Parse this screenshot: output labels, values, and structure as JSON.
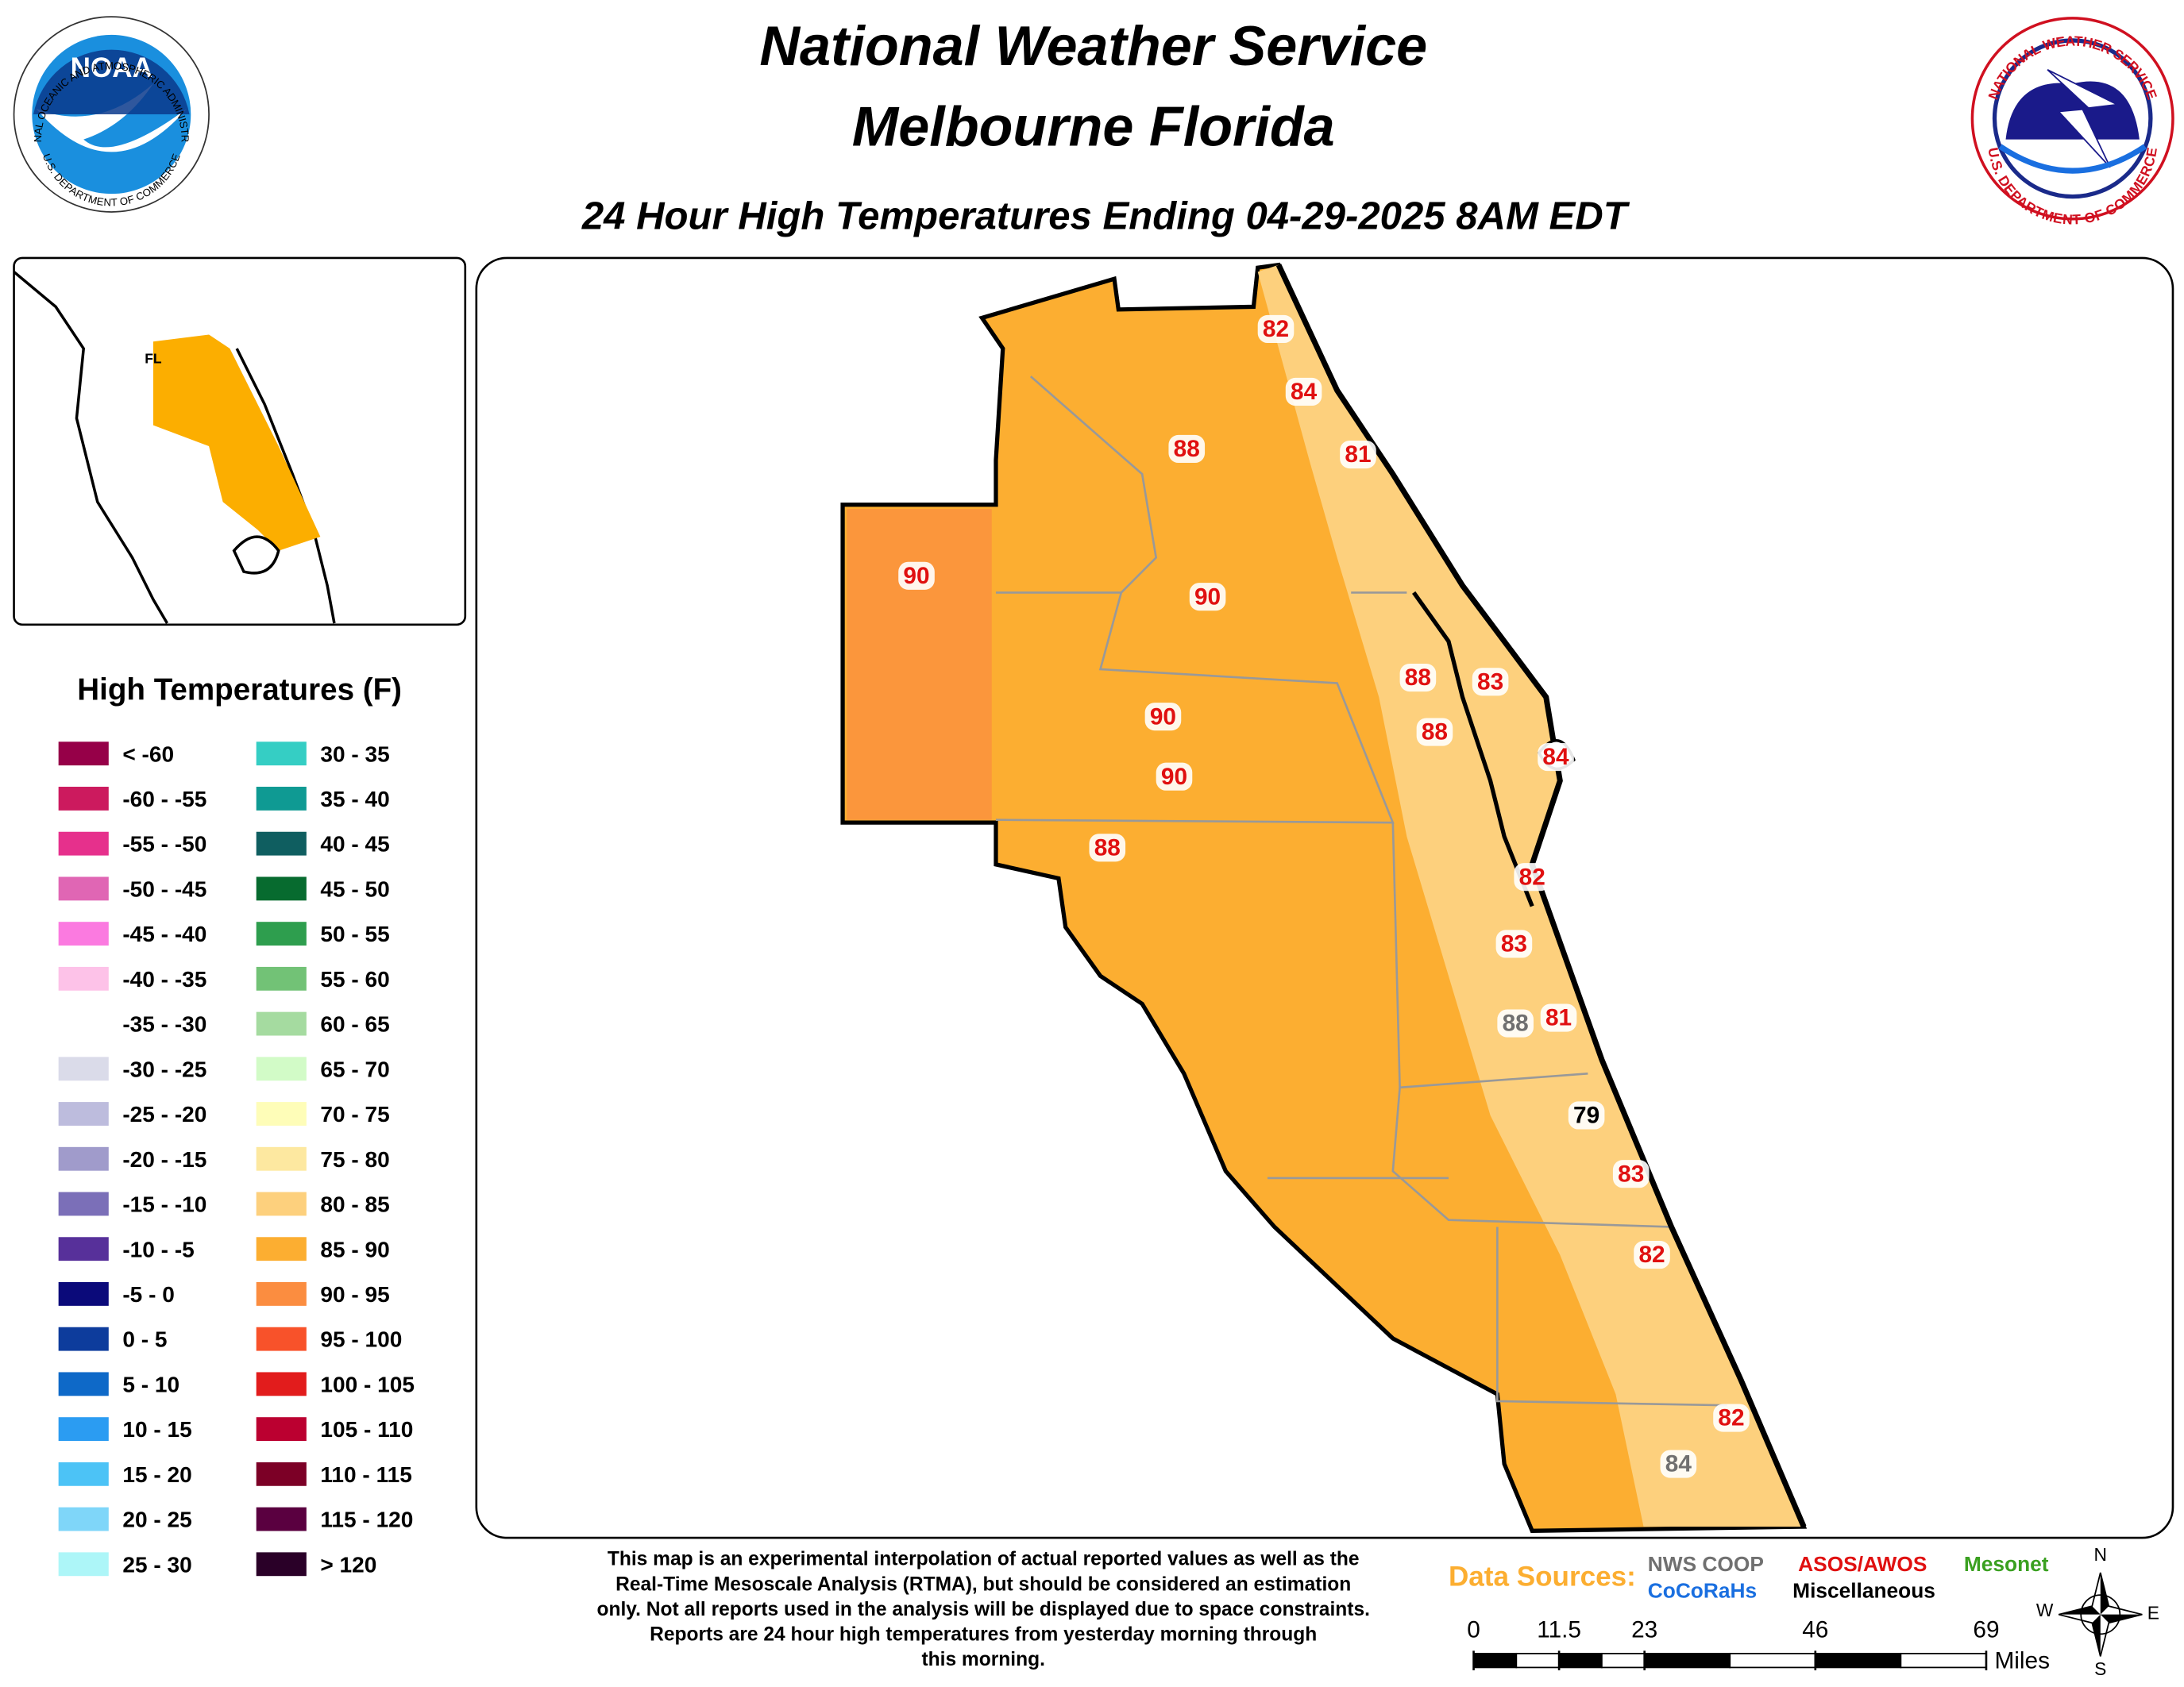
{
  "header": {
    "title_line1": "National Weather Service",
    "title_line2": "Melbourne Florida",
    "subtitle": "24 Hour High Temperatures Ending 04-29-2025 8AM EDT"
  },
  "logos": {
    "noaa": "NOAA",
    "noaa_ring_top": "NATIONAL OCEANIC AND ATMOSPHERIC ADMINISTRATION",
    "noaa_ring_bottom": "U.S. DEPARTMENT OF COMMERCE",
    "nws_ring_top": "NATIONAL WEATHER SERVICE",
    "nws_ring_bottom": "U.S. DEPARTMENT OF COMMERCE"
  },
  "inset": {
    "label": "FL"
  },
  "legend": {
    "title": "High Temperatures (F)",
    "entries": [
      {
        "label": "< -60",
        "color": "#960048"
      },
      {
        "label": "-60 - -55",
        "color": "#cc1a5e"
      },
      {
        "label": "-55 - -50",
        "color": "#e6308c"
      },
      {
        "label": "-50 - -45",
        "color": "#e066b4"
      },
      {
        "label": "-45 - -40",
        "color": "#fb7ae0"
      },
      {
        "label": "-40 - -35",
        "color": "#fdc2e8"
      },
      {
        "label": "-35 - -30",
        "color": "#ffffff"
      },
      {
        "label": "-30 - -25",
        "color": "#dadbe9"
      },
      {
        "label": "-25 - -20",
        "color": "#bdbcdd"
      },
      {
        "label": "-20 - -15",
        "color": "#a09bcb"
      },
      {
        "label": "-15 - -10",
        "color": "#7b6fb8"
      },
      {
        "label": "-10 - -5",
        "color": "#57309a"
      },
      {
        "label": "-5 - 0",
        "color": "#0b0a7a"
      },
      {
        "label": "0 - 5",
        "color": "#0d3c9c"
      },
      {
        "label": "5 - 10",
        "color": "#0e69c8"
      },
      {
        "label": "10 - 15",
        "color": "#2b9cf2"
      },
      {
        "label": "15 - 20",
        "color": "#4cc3f6"
      },
      {
        "label": "20 - 25",
        "color": "#7fd6f9"
      },
      {
        "label": "25 - 30",
        "color": "#adf6f8"
      },
      {
        "label": "30 - 35",
        "color": "#35cec4"
      },
      {
        "label": "35 - 40",
        "color": "#0f9a93"
      },
      {
        "label": "40 - 45",
        "color": "#0f5e60"
      },
      {
        "label": "45 - 50",
        "color": "#076b2f"
      },
      {
        "label": "50 - 55",
        "color": "#2e9e4e"
      },
      {
        "label": "55 - 60",
        "color": "#72c276"
      },
      {
        "label": "60 - 65",
        "color": "#a5dba0"
      },
      {
        "label": "65 - 70",
        "color": "#d2fbc7"
      },
      {
        "label": "70 - 75",
        "color": "#fefdb8"
      },
      {
        "label": "75 - 80",
        "color": "#fde8a0"
      },
      {
        "label": "80 - 85",
        "color": "#fdd07d"
      },
      {
        "label": "85 - 90",
        "color": "#fcae31"
      },
      {
        "label": "90 - 95",
        "color": "#fb8d40"
      },
      {
        "label": "95 - 100",
        "color": "#f8522a"
      },
      {
        "label": "100 - 105",
        "color": "#e21c1c"
      },
      {
        "label": "105 - 110",
        "color": "#bb0030"
      },
      {
        "label": "110 - 115",
        "color": "#7c0026"
      },
      {
        "label": "115 - 120",
        "color": "#5a0040"
      },
      {
        "label": "> 120",
        "color": "#2a0028"
      }
    ]
  },
  "stations": [
    {
      "value": 82,
      "color": "#e01010"
    },
    {
      "value": 84,
      "color": "#e01010"
    },
    {
      "value": 81,
      "color": "#e01010"
    },
    {
      "value": 88,
      "color": "#e01010"
    },
    {
      "value": 90,
      "color": "#e01010"
    },
    {
      "value": 90,
      "color": "#e01010"
    },
    {
      "value": 88,
      "color": "#e01010"
    },
    {
      "value": 83,
      "color": "#e01010"
    },
    {
      "value": 88,
      "color": "#e01010"
    },
    {
      "value": 90,
      "color": "#e01010"
    },
    {
      "value": 84,
      "color": "#e01010"
    },
    {
      "value": 90,
      "color": "#e01010"
    },
    {
      "value": 88,
      "color": "#e01010"
    },
    {
      "value": 82,
      "color": "#e01010"
    },
    {
      "value": 83,
      "color": "#e01010"
    },
    {
      "value": 88,
      "color": "#707070"
    },
    {
      "value": 81,
      "color": "#e01010"
    },
    {
      "value": 79,
      "color": "#000000"
    },
    {
      "value": 83,
      "color": "#e01010"
    },
    {
      "value": 82,
      "color": "#e01010"
    },
    {
      "value": 82,
      "color": "#e01010"
    },
    {
      "value": 84,
      "color": "#707070"
    }
  ],
  "footnote": [
    "This map is an experimental interpolation of actual reported values as well as the",
    "Real-Time Mesoscale Analysis (RTMA), but should be considered an estimation",
    "only. Not all reports used in the analysis will be displayed due to space constraints.",
    "Reports are 24 hour high temperatures from yesterday morning through",
    "this morning."
  ],
  "data_sources": {
    "title": "Data Sources:",
    "items": [
      {
        "label": "NWS COOP",
        "color": "#707070"
      },
      {
        "label": "ASOS/AWOS",
        "color": "#e01010"
      },
      {
        "label": "Mesonet",
        "color": "#3aa020"
      },
      {
        "label": "CoCoRaHs",
        "color": "#1a6fe0"
      },
      {
        "label": "Miscellaneous",
        "color": "#000000"
      }
    ]
  },
  "scale_bar": {
    "ticks": [
      0,
      11.5,
      23,
      46,
      69
    ],
    "unit": "Miles"
  },
  "compass": {
    "n": "N",
    "e": "E",
    "s": "S",
    "w": "W"
  }
}
